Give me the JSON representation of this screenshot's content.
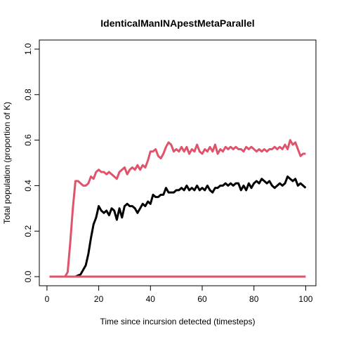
{
  "chart_data": {
    "type": "line",
    "title": "IdenticalManINApestMetaParallel",
    "x_label": "Time since incursion detected (timesteps)",
    "y_label": "Total population (proportion of K)",
    "x": [
      1,
      2,
      3,
      4,
      5,
      6,
      7,
      8,
      9,
      10,
      11,
      12,
      13,
      14,
      15,
      16,
      17,
      18,
      19,
      20,
      21,
      22,
      23,
      24,
      25,
      26,
      27,
      28,
      29,
      30,
      31,
      32,
      33,
      34,
      35,
      36,
      37,
      38,
      39,
      40,
      41,
      42,
      43,
      44,
      45,
      46,
      47,
      48,
      49,
      50,
      51,
      52,
      53,
      54,
      55,
      56,
      57,
      58,
      59,
      60,
      61,
      62,
      63,
      64,
      65,
      66,
      67,
      68,
      69,
      70,
      71,
      72,
      73,
      74,
      75,
      76,
      77,
      78,
      79,
      80,
      81,
      82,
      83,
      84,
      85,
      86,
      87,
      88,
      89,
      90,
      91,
      92,
      93,
      94,
      95,
      96,
      97,
      98,
      99,
      100
    ],
    "series": [
      {
        "color": "#000000",
        "values": [
          0,
          0,
          0,
          0,
          0,
          0,
          0,
          0,
          0,
          0,
          0,
          0.005,
          0.01,
          0.03,
          0.05,
          0.1,
          0.17,
          0.23,
          0.26,
          0.31,
          0.29,
          0.28,
          0.29,
          0.27,
          0.3,
          0.29,
          0.25,
          0.3,
          0.26,
          0.31,
          0.32,
          0.31,
          0.31,
          0.3,
          0.28,
          0.3,
          0.32,
          0.31,
          0.33,
          0.32,
          0.36,
          0.35,
          0.35,
          0.36,
          0.36,
          0.39,
          0.37,
          0.37,
          0.37,
          0.38,
          0.38,
          0.39,
          0.38,
          0.4,
          0.38,
          0.39,
          0.38,
          0.4,
          0.38,
          0.39,
          0.38,
          0.4,
          0.38,
          0.37,
          0.39,
          0.39,
          0.4,
          0.4,
          0.41,
          0.4,
          0.41,
          0.4,
          0.41,
          0.41,
          0.38,
          0.4,
          0.38,
          0.41,
          0.39,
          0.41,
          0.42,
          0.41,
          0.43,
          0.42,
          0.41,
          0.42,
          0.4,
          0.39,
          0.4,
          0.41,
          0.4,
          0.41,
          0.44,
          0.43,
          0.42,
          0.43,
          0.4,
          0.41,
          0.4,
          0.39
        ]
      },
      {
        "color": "#DF536B",
        "values": [
          0,
          0,
          0,
          0,
          0,
          0,
          0,
          0.02,
          0.15,
          0.3,
          0.42,
          0.42,
          0.41,
          0.4,
          0.4,
          0.41,
          0.44,
          0.43,
          0.46,
          0.47,
          0.46,
          0.46,
          0.45,
          0.46,
          0.45,
          0.44,
          0.43,
          0.46,
          0.47,
          0.48,
          0.45,
          0.47,
          0.48,
          0.47,
          0.49,
          0.47,
          0.49,
          0.48,
          0.51,
          0.55,
          0.55,
          0.56,
          0.53,
          0.52,
          0.54,
          0.57,
          0.59,
          0.58,
          0.55,
          0.56,
          0.55,
          0.57,
          0.55,
          0.57,
          0.54,
          0.56,
          0.55,
          0.58,
          0.55,
          0.54,
          0.56,
          0.55,
          0.57,
          0.55,
          0.58,
          0.54,
          0.56,
          0.55,
          0.57,
          0.56,
          0.57,
          0.56,
          0.57,
          0.56,
          0.56,
          0.55,
          0.57,
          0.56,
          0.57,
          0.56,
          0.55,
          0.56,
          0.55,
          0.56,
          0.55,
          0.56,
          0.56,
          0.57,
          0.56,
          0.57,
          0.56,
          0.58,
          0.56,
          0.6,
          0.58,
          0.59,
          0.56,
          0.53,
          0.54,
          0.54
        ]
      },
      {
        "color": "#DF536B",
        "values": [
          0,
          0,
          0,
          0,
          0,
          0,
          0,
          0,
          0,
          0,
          0,
          0,
          0,
          0,
          0,
          0,
          0,
          0,
          0,
          0,
          0,
          0,
          0,
          0,
          0,
          0,
          0,
          0,
          0,
          0,
          0,
          0,
          0,
          0,
          0,
          0,
          0,
          0,
          0,
          0,
          0,
          0,
          0,
          0,
          0,
          0,
          0,
          0,
          0,
          0,
          0,
          0,
          0,
          0,
          0,
          0,
          0,
          0,
          0,
          0,
          0,
          0,
          0,
          0,
          0,
          0,
          0,
          0,
          0,
          0,
          0,
          0,
          0,
          0,
          0,
          0,
          0,
          0,
          0,
          0,
          0,
          0,
          0,
          0,
          0,
          0,
          0,
          0,
          0,
          0,
          0,
          0,
          0,
          0,
          0,
          0,
          0,
          0,
          0,
          0
        ]
      }
    ],
    "xlim": [
      -2.96,
      103.96
    ],
    "xticks": [
      0,
      20,
      40,
      60,
      80,
      100
    ],
    "ylim": [
      -0.04,
      1.04
    ],
    "yticks": [
      {
        "value": 0,
        "label": "0.0"
      },
      0.2,
      0.4,
      0.6,
      0.8,
      {
        "value": 1,
        "label": "1.0"
      }
    ]
  }
}
